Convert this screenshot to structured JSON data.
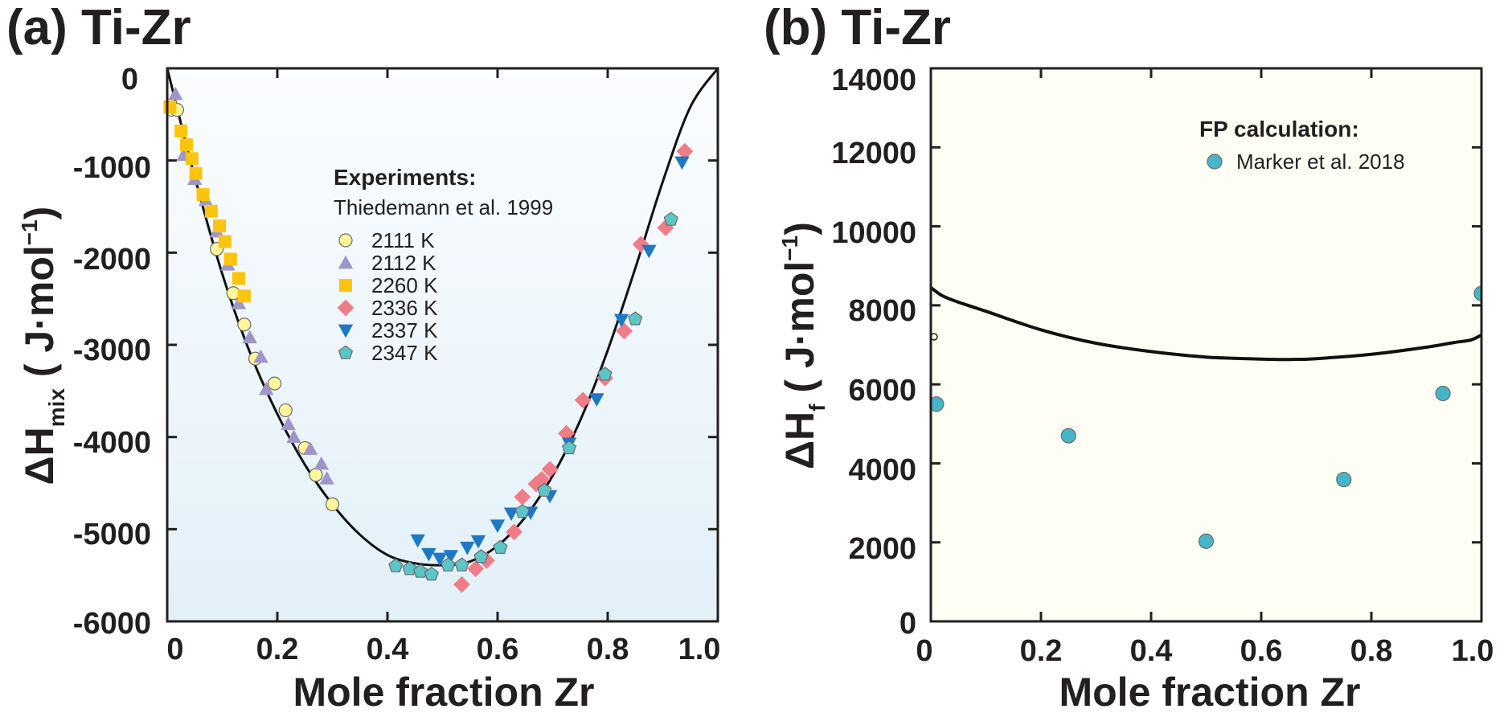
{
  "chart_data": [
    {
      "type": "scatter",
      "panel_label": "(a) Ti-Zr",
      "xlabel": "Mole fraction Zr",
      "ylabel": "ΔH",
      "ylabel_sub": "mix",
      "ylabel_units": "( J·mol",
      "ylabel_exp": "−1",
      "ylabel_close": ")",
      "xlim": [
        0,
        1.0
      ],
      "ylim": [
        -6000,
        0
      ],
      "xticks": [
        0,
        0.2,
        0.4,
        0.6,
        0.8,
        1.0
      ],
      "xtick_labels": [
        "0",
        "0.2",
        "0.4",
        "0.6",
        "0.8",
        "1.0"
      ],
      "yticks": [
        0,
        -1000,
        -2000,
        -3000,
        -4000,
        -5000,
        -6000
      ],
      "ytick_labels": [
        "0",
        "-1000",
        "-2000",
        "-3000",
        "-4000",
        "-5000",
        "-6000"
      ],
      "legend_title": "Experiments:",
      "legend_subtitle": "Thiedemann et al. 1999",
      "legend_position": "upper-center",
      "background": "#eef6fb",
      "curve": {
        "x": [
          0,
          0.05,
          0.1,
          0.15,
          0.2,
          0.25,
          0.3,
          0.35,
          0.4,
          0.45,
          0.5,
          0.55,
          0.6,
          0.65,
          0.7,
          0.75,
          0.8,
          0.85,
          0.9,
          0.95,
          1.0
        ],
        "y": [
          0,
          -1180,
          -2230,
          -3080,
          -3750,
          -4300,
          -4730,
          -5060,
          -5280,
          -5370,
          -5390,
          -5350,
          -5180,
          -4870,
          -4420,
          -3820,
          -3060,
          -2170,
          -1230,
          -420,
          0
        ]
      },
      "series": [
        {
          "name": "2111 K",
          "marker": "circle",
          "color": "#fff59a",
          "x": [
            0.008,
            0.018,
            0.09,
            0.12,
            0.14,
            0.16,
            0.195,
            0.215,
            0.25,
            0.27,
            0.3
          ],
          "y": [
            -450,
            -450,
            -1960,
            -2440,
            -2780,
            -3150,
            -3420,
            -3710,
            -4120,
            -4410,
            -4730
          ]
        },
        {
          "name": "2112 K",
          "marker": "triangle-up",
          "color": "#9e95c9",
          "x": [
            0.015,
            0.03,
            0.05,
            0.07,
            0.09,
            0.11,
            0.13,
            0.15,
            0.17,
            0.18,
            0.22,
            0.23,
            0.26,
            0.28,
            0.29
          ],
          "y": [
            -280,
            -940,
            -1200,
            -1430,
            -1770,
            -2130,
            -2550,
            -2920,
            -3130,
            -3480,
            -3860,
            -4000,
            -4130,
            -4290,
            -4450
          ]
        },
        {
          "name": "2260 K",
          "marker": "square",
          "color": "#fdc40e",
          "x": [
            0.005,
            0.025,
            0.035,
            0.045,
            0.052,
            0.065,
            0.08,
            0.095,
            0.105,
            0.115,
            0.13,
            0.14
          ],
          "y": [
            -420,
            -680,
            -830,
            -980,
            -1140,
            -1370,
            -1550,
            -1710,
            -1880,
            -2070,
            -2280,
            -2470
          ]
        },
        {
          "name": "2336 K",
          "marker": "diamond",
          "color": "#ef7d87",
          "x": [
            0.535,
            0.56,
            0.58,
            0.63,
            0.645,
            0.67,
            0.68,
            0.695,
            0.725,
            0.755,
            0.795,
            0.83,
            0.86,
            0.905,
            0.94
          ],
          "y": [
            -5600,
            -5430,
            -5340,
            -5030,
            -4650,
            -4510,
            -4460,
            -4350,
            -3960,
            -3600,
            -3360,
            -2850,
            -1910,
            -1730,
            -900
          ]
        },
        {
          "name": "2337 K",
          "marker": "triangle-down",
          "color": "#1e78c5",
          "x": [
            0.455,
            0.475,
            0.495,
            0.515,
            0.545,
            0.565,
            0.6,
            0.625,
            0.66,
            0.695,
            0.73,
            0.78,
            0.825,
            0.875,
            0.935
          ],
          "y": [
            -5120,
            -5270,
            -5320,
            -5290,
            -5200,
            -5130,
            -4960,
            -4830,
            -4820,
            -4640,
            -4070,
            -3590,
            -2730,
            -1980,
            -1020
          ]
        },
        {
          "name": "2347 K",
          "marker": "pentagon",
          "color": "#5cc5c7",
          "x": [
            0.415,
            0.44,
            0.46,
            0.48,
            0.51,
            0.535,
            0.57,
            0.605,
            0.645,
            0.685,
            0.73,
            0.795,
            0.85,
            0.915
          ],
          "y": [
            -5400,
            -5430,
            -5460,
            -5490,
            -5390,
            -5390,
            -5300,
            -5200,
            -4810,
            -4580,
            -4120,
            -3320,
            -2720,
            -1640
          ]
        }
      ]
    },
    {
      "type": "scatter",
      "panel_label": "(b) Ti-Zr",
      "xlabel": "Mole fraction Zr",
      "ylabel": "ΔH",
      "ylabel_sub": "f",
      "ylabel_units": "( J·mol",
      "ylabel_exp": "−1",
      "ylabel_close": ")",
      "xlim": [
        0,
        1.0
      ],
      "ylim": [
        0,
        14000
      ],
      "xticks": [
        0,
        0.2,
        0.4,
        0.6,
        0.8,
        1.0
      ],
      "xtick_labels": [
        "0",
        "0.2",
        "0.4",
        "0.6",
        "0.8",
        "1.0"
      ],
      "yticks": [
        0,
        2000,
        4000,
        6000,
        8000,
        10000,
        12000,
        14000
      ],
      "ytick_labels": [
        "0",
        "2000",
        "4000",
        "6000",
        "8000",
        "10000",
        "12000",
        "14000"
      ],
      "legend_title": "FP calculation:",
      "legend_position": "top-right",
      "background": "#fefef4",
      "curve": {
        "x": [
          0,
          0.02,
          0.05,
          0.1,
          0.2,
          0.3,
          0.4,
          0.5,
          0.6,
          0.65,
          0.7,
          0.8,
          0.9,
          0.95,
          0.98,
          1.0
        ],
        "y": [
          8450,
          8250,
          8080,
          7850,
          7380,
          7040,
          6830,
          6690,
          6640,
          6630,
          6650,
          6760,
          6940,
          7060,
          7120,
          7250
        ]
      },
      "series": [
        {
          "name": "Marker et al. 2018",
          "marker": "circle",
          "color": "#44b6c8",
          "x": [
            0.01,
            0.25,
            0.5,
            0.75,
            0.93,
            1.0
          ],
          "y": [
            5500,
            4700,
            2030,
            3590,
            5770,
            8300
          ]
        }
      ]
    }
  ]
}
